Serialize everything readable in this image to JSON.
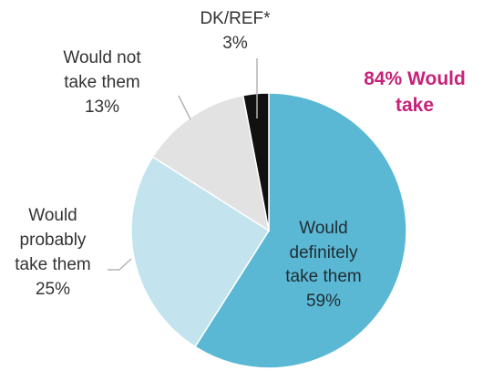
{
  "chart_data": {
    "type": "pie",
    "start_angle_deg": 0,
    "direction": "clockwise",
    "slices": [
      {
        "label_lines": [
          "Would",
          "definitely",
          "take them"
        ],
        "value": 59,
        "value_text": "59%",
        "color": "#5bb8d4"
      },
      {
        "label_lines": [
          "Would",
          "probably",
          "take them"
        ],
        "value": 25,
        "value_text": "25%",
        "color": "#c3e4ee"
      },
      {
        "label_lines": [
          "Would not",
          "take them"
        ],
        "value": 13,
        "value_text": "13%",
        "color": "#e2e2e2"
      },
      {
        "label_lines": [
          "DK/REF*"
        ],
        "value": 3,
        "value_text": "3%",
        "color": "#111111"
      }
    ],
    "callout": {
      "lines": [
        "84% Would",
        "take"
      ],
      "color": "#c8217a"
    }
  }
}
